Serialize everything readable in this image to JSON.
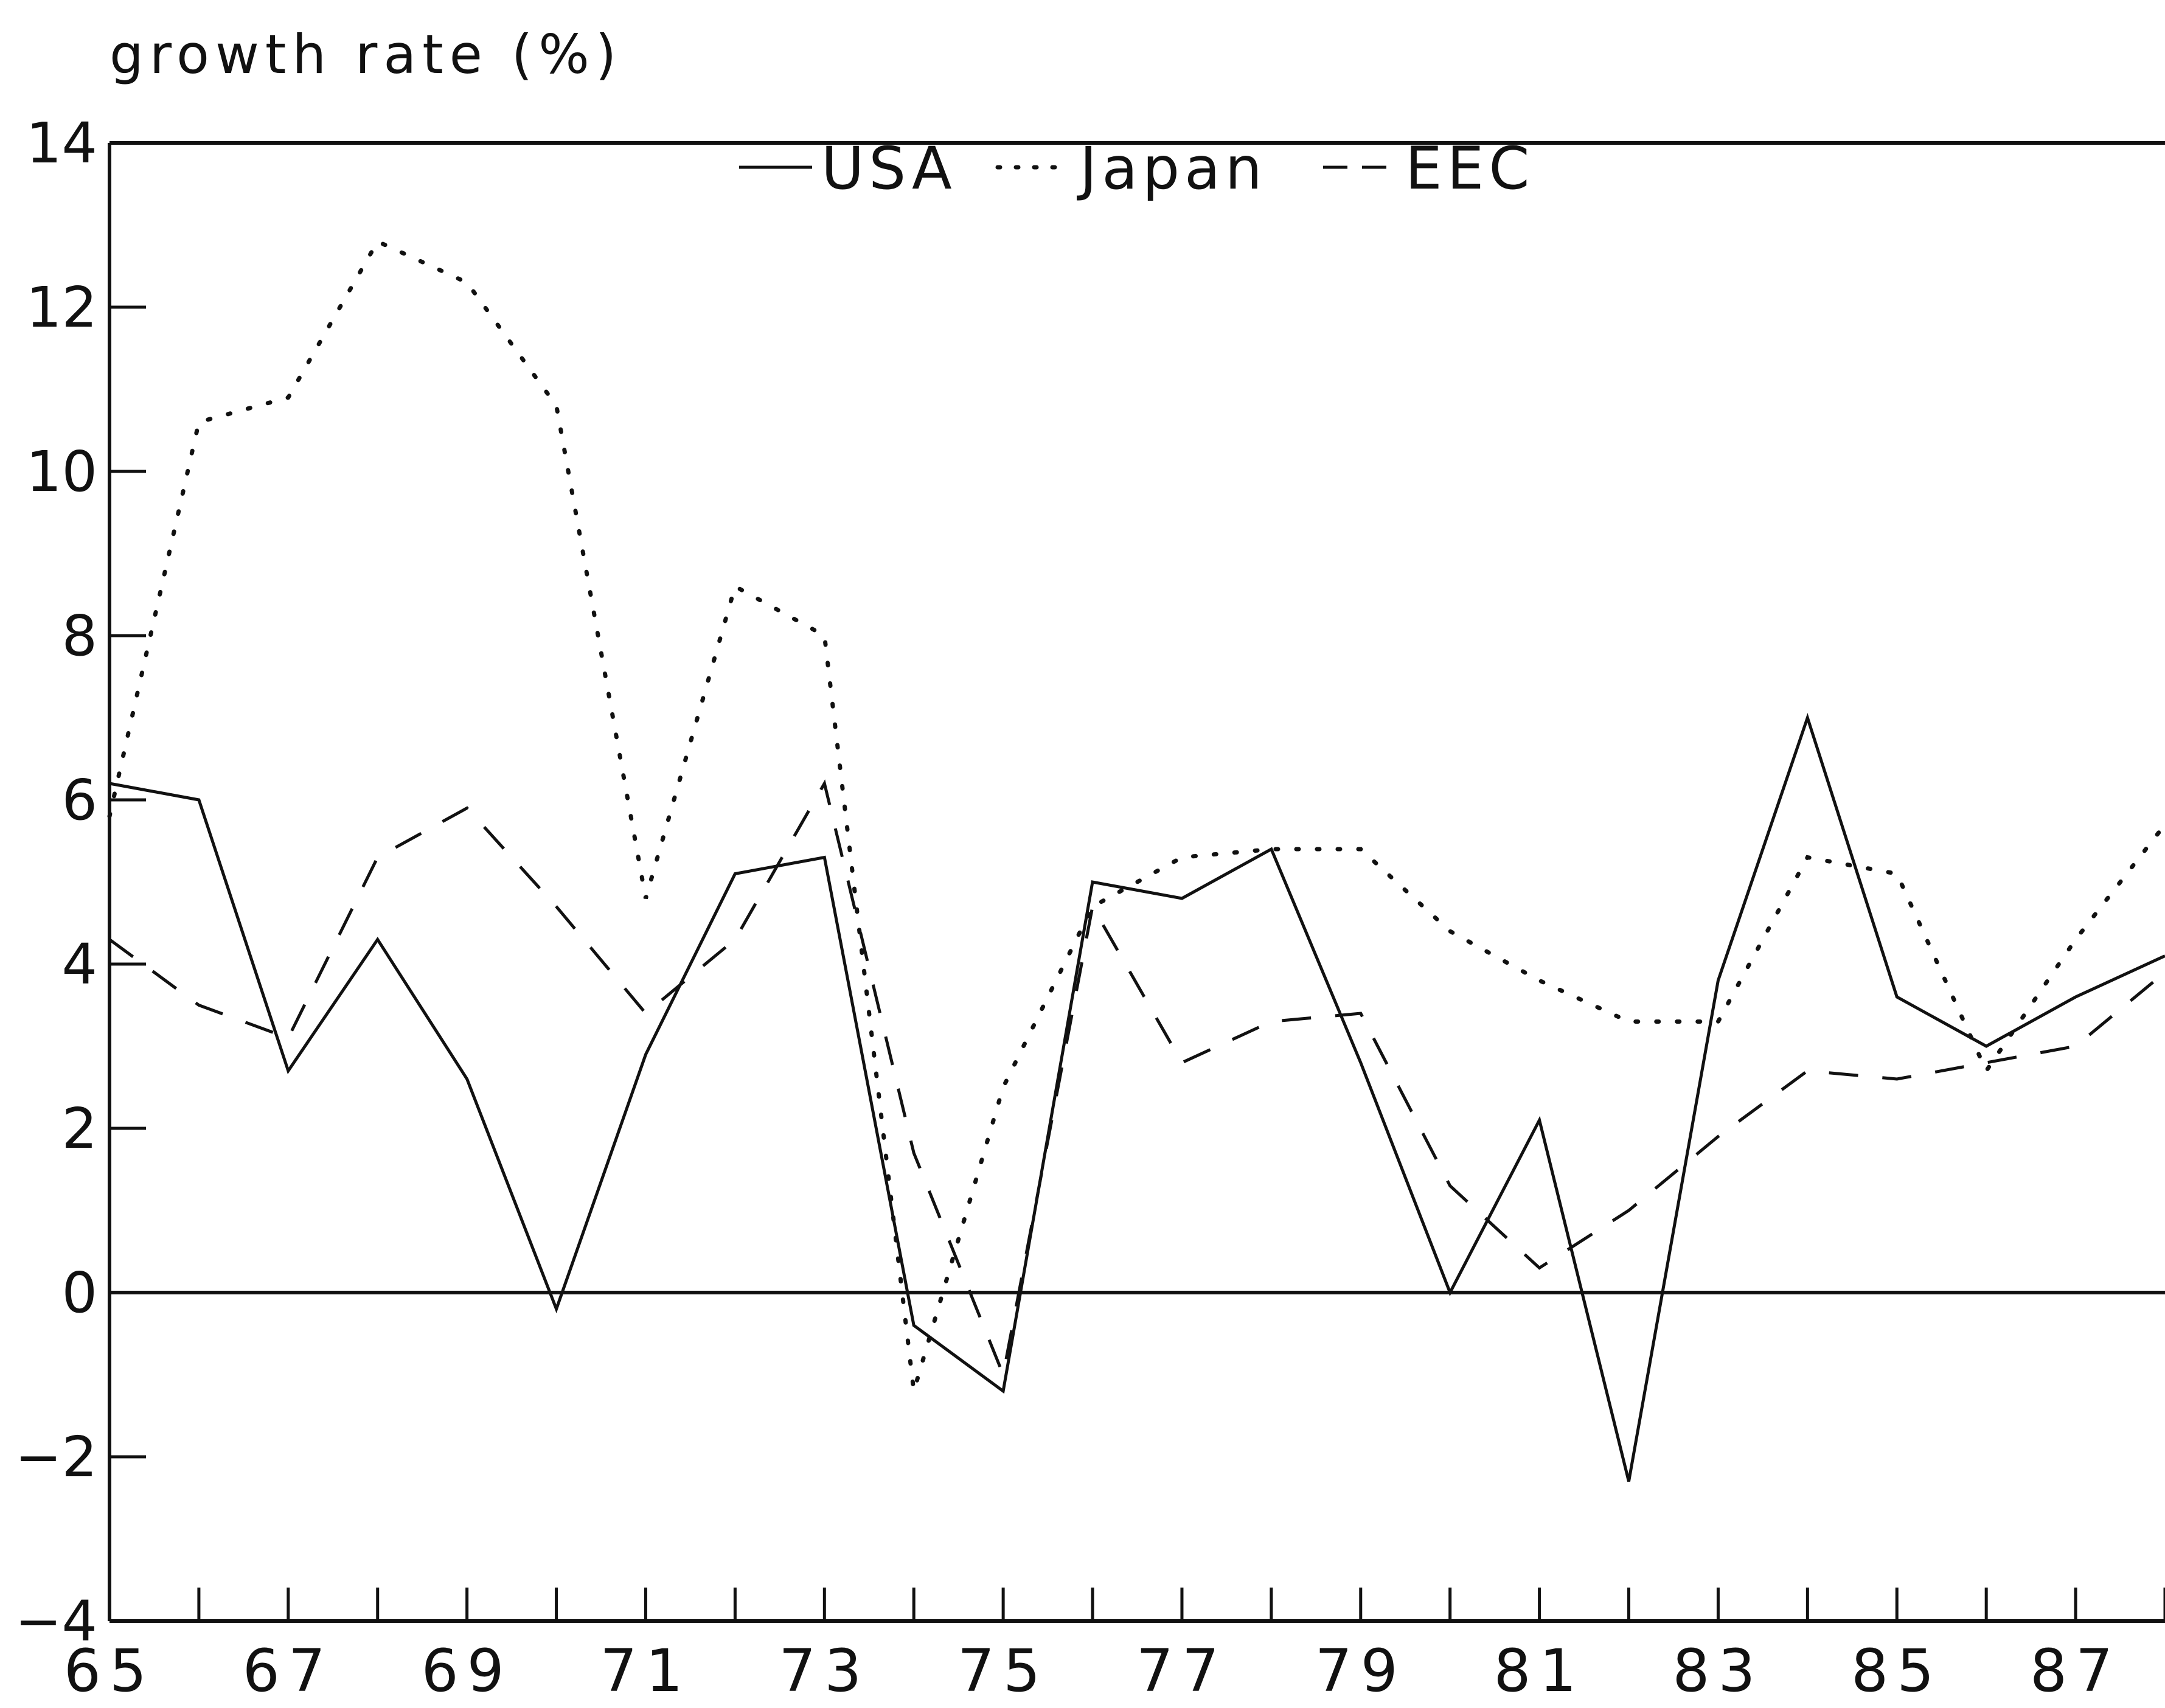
{
  "chart_data": {
    "type": "line",
    "ylabel": "growth rate (%)",
    "xlabel": "",
    "x": [
      65,
      66,
      67,
      68,
      69,
      70,
      71,
      72,
      73,
      74,
      75,
      76,
      77,
      78,
      79,
      80,
      81,
      82,
      83,
      84,
      85,
      86,
      87,
      88
    ],
    "xticks": [
      65,
      67,
      69,
      71,
      73,
      75,
      77,
      79,
      81,
      83,
      85,
      87
    ],
    "yticks": [
      -4,
      -2,
      0,
      2,
      4,
      6,
      8,
      10,
      12,
      14
    ],
    "xlim": [
      65,
      88
    ],
    "ylim": [
      -4,
      14
    ],
    "grid": false,
    "zero_line": true,
    "legend": "top-center",
    "series": [
      {
        "name": "USA",
        "style": "solid",
        "values": [
          6.2,
          6.0,
          2.7,
          4.3,
          2.6,
          -0.2,
          2.9,
          5.1,
          5.3,
          -0.4,
          -1.2,
          5.0,
          4.8,
          5.4,
          2.8,
          0.0,
          2.1,
          -2.3,
          3.8,
          7.0,
          3.6,
          3.0,
          3.6,
          4.1
        ]
      },
      {
        "name": "Japan",
        "style": "dotted",
        "values": [
          5.8,
          10.6,
          10.9,
          12.8,
          12.3,
          10.8,
          4.8,
          8.6,
          8.0,
          -1.2,
          2.5,
          4.7,
          5.3,
          5.4,
          5.4,
          4.4,
          3.8,
          3.3,
          3.3,
          5.3,
          5.1,
          2.7,
          4.3,
          5.7
        ]
      },
      {
        "name": "EEC",
        "style": "dashed",
        "values": [
          4.3,
          3.5,
          3.1,
          5.3,
          5.9,
          4.7,
          3.4,
          4.3,
          6.2,
          1.7,
          -1.0,
          4.7,
          2.8,
          3.3,
          3.4,
          1.3,
          0.3,
          1.0,
          1.9,
          2.7,
          2.6,
          2.8,
          3.0,
          3.9
        ]
      }
    ]
  }
}
